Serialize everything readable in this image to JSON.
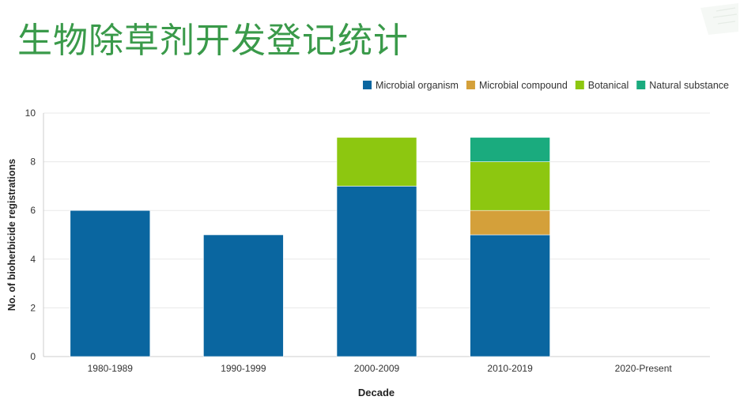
{
  "slide": {
    "title": "生物除草剂开发登记统计"
  },
  "colors": {
    "title": "#3a9a4a",
    "microbial_organism": "#0a66a0",
    "microbial_compound": "#d4a03a",
    "botanical": "#8dc710",
    "natural_substance": "#1aab7e",
    "grid": "#e8e8e8",
    "axis": "#cccccc",
    "text": "#333333"
  },
  "chart_data": {
    "type": "bar",
    "stacked": true,
    "categories": [
      "1980-1989",
      "1990-1999",
      "2000-2009",
      "2010-2019",
      "2020-Present"
    ],
    "series": [
      {
        "name": "Microbial organism",
        "color": "#0a66a0",
        "values": [
          6,
          5,
          7,
          5,
          0
        ]
      },
      {
        "name": "Microbial compound",
        "color": "#d4a03a",
        "values": [
          0,
          0,
          0,
          1,
          0
        ]
      },
      {
        "name": "Botanical",
        "color": "#8dc710",
        "values": [
          0,
          0,
          2,
          2,
          0
        ]
      },
      {
        "name": "Natural substance",
        "color": "#1aab7e",
        "values": [
          0,
          0,
          0,
          1,
          0
        ]
      }
    ],
    "xlabel": "Decade",
    "ylabel": "No. of bioherbicide registrations",
    "ylim": [
      0,
      10
    ],
    "yticks": [
      0,
      2,
      4,
      6,
      8,
      10
    ],
    "grid": true,
    "legend_position": "top-right"
  }
}
